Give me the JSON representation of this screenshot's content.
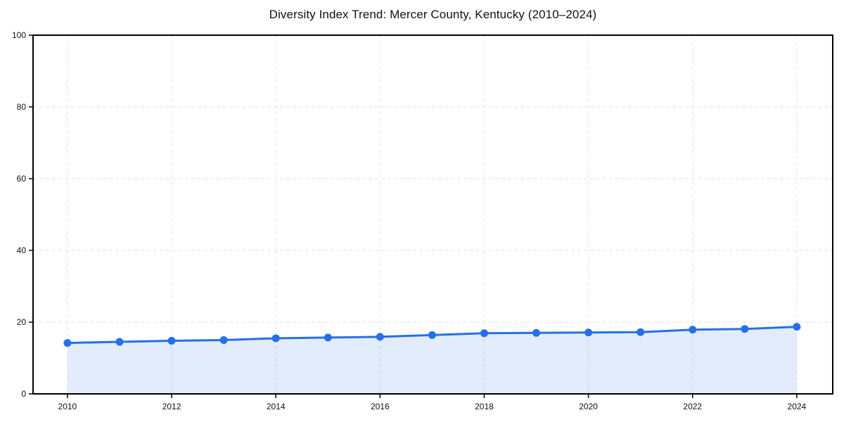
{
  "page": {
    "background": "#ffffff"
  },
  "chart_data": {
    "type": "line",
    "title": "Diversity Index Trend: Mercer County, Kentucky (2010–2024)",
    "x": [
      2010,
      2011,
      2012,
      2013,
      2014,
      2015,
      2016,
      2017,
      2018,
      2019,
      2020,
      2021,
      2022,
      2023,
      2024
    ],
    "series": [
      {
        "name": "Diversity Index",
        "values": [
          14.2,
          14.5,
          14.8,
          15.0,
          15.5,
          15.7,
          15.9,
          16.4,
          16.9,
          17.0,
          17.1,
          17.2,
          17.9,
          18.1,
          18.7
        ]
      }
    ],
    "xlabel": "",
    "ylabel": "",
    "xlim": [
      2009.34,
      2024.69
    ],
    "ylim": [
      0,
      100
    ],
    "xticks": [
      2010,
      2012,
      2014,
      2016,
      2018,
      2020,
      2022,
      2024
    ],
    "yticks": [
      0,
      20,
      40,
      60,
      80,
      100
    ],
    "grid": true,
    "grid_style": "dashed",
    "legend": "none",
    "area_fill": true,
    "markers": true,
    "colors": {
      "line": "#2570e8",
      "marker": "#2570e8",
      "area": "rgba(37,112,232,0.13)",
      "grid": "#e8e8e8",
      "axis": "#000000",
      "tick_label": "#111111",
      "title": "#111111",
      "plot_background": "#ffffff",
      "figure_background": "#ffffff"
    }
  }
}
